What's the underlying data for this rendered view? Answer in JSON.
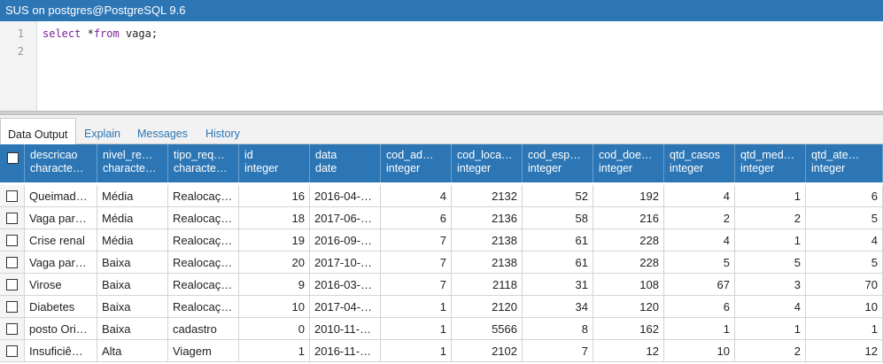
{
  "window": {
    "title": "SUS on postgres@PostgreSQL 9.6"
  },
  "editor": {
    "line_numbers": [
      "1",
      "2"
    ],
    "query": {
      "kw1": "select",
      "t1": " *",
      "kw2": "from",
      "t2": " vaga;"
    }
  },
  "tabs": [
    "Data Output",
    "Explain",
    "Messages",
    "History"
  ],
  "columns": [
    {
      "name": "descricao",
      "type": "characte…"
    },
    {
      "name": "nivel_re…",
      "type": "characte…"
    },
    {
      "name": "tipo_req…",
      "type": "characte…"
    },
    {
      "name": "id",
      "type": "integer"
    },
    {
      "name": "data",
      "type": "date"
    },
    {
      "name": "cod_ad…",
      "type": "integer"
    },
    {
      "name": "cod_loca…",
      "type": "integer"
    },
    {
      "name": "cod_esp…",
      "type": "integer"
    },
    {
      "name": "cod_doe…",
      "type": "integer"
    },
    {
      "name": "qtd_casos",
      "type": "integer"
    },
    {
      "name": "qtd_med…",
      "type": "integer"
    },
    {
      "name": "qtd_ate…",
      "type": "integer"
    }
  ],
  "rows": [
    [
      "Queimad…",
      "Média",
      "Realocaç…",
      "16",
      "2016-04-…",
      "4",
      "2132",
      "52",
      "192",
      "4",
      "1",
      "6"
    ],
    [
      "Vaga par…",
      "Média",
      "Realocaç…",
      "18",
      "2017-06-…",
      "6",
      "2136",
      "58",
      "216",
      "2",
      "2",
      "5"
    ],
    [
      "Crise renal",
      "Média",
      "Realocaç…",
      "19",
      "2016-09-…",
      "7",
      "2138",
      "61",
      "228",
      "4",
      "1",
      "4"
    ],
    [
      "Vaga par…",
      "Baixa",
      "Realocaç…",
      "20",
      "2017-10-…",
      "7",
      "2138",
      "61",
      "228",
      "5",
      "5",
      "5"
    ],
    [
      "Virose",
      "Baixa",
      "Realocaç…",
      "9",
      "2016-03-…",
      "7",
      "2118",
      "31",
      "108",
      "67",
      "3",
      "70"
    ],
    [
      "Diabetes",
      "Baixa",
      "Realocaç…",
      "10",
      "2017-04-…",
      "1",
      "2120",
      "34",
      "120",
      "6",
      "4",
      "10"
    ],
    [
      "posto Ori…",
      "Baixa",
      "cadastro",
      "0",
      "2010-11-…",
      "1",
      "5566",
      "8",
      "162",
      "1",
      "1",
      "1"
    ],
    [
      "Insuficiê…",
      "Alta",
      "Viagem",
      "1",
      "2016-11-…",
      "1",
      "2102",
      "7",
      "12",
      "10",
      "2",
      "12"
    ]
  ]
}
